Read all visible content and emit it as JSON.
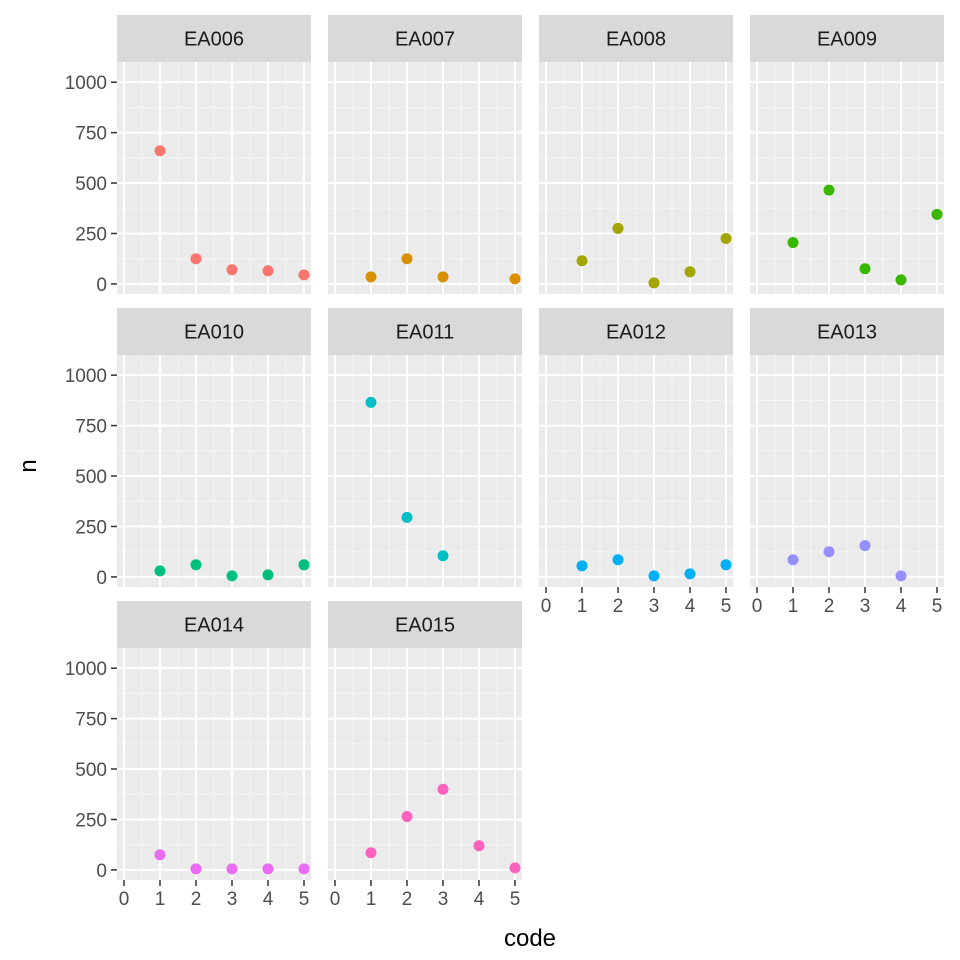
{
  "chart_data": {
    "type": "scatter",
    "xlabel": "code",
    "ylabel": "n",
    "xlim": [
      0,
      5
    ],
    "ylim": [
      0,
      1000
    ],
    "x_ticks": [
      "0",
      "1",
      "2",
      "3",
      "4",
      "5"
    ],
    "y_ticks": [
      "0",
      "250",
      "500",
      "750",
      "1000"
    ],
    "grid": true,
    "legend": "none",
    "facets": [
      {
        "name": "EA006",
        "color": "#F8766D",
        "points": [
          {
            "x": 1,
            "y": 660
          },
          {
            "x": 2,
            "y": 125
          },
          {
            "x": 3,
            "y": 70
          },
          {
            "x": 4,
            "y": 65
          },
          {
            "x": 5,
            "y": 45
          }
        ]
      },
      {
        "name": "EA007",
        "color": "#D89000",
        "points": [
          {
            "x": 1,
            "y": 35
          },
          {
            "x": 2,
            "y": 125
          },
          {
            "x": 3,
            "y": 35
          },
          {
            "x": 5,
            "y": 25
          }
        ]
      },
      {
        "name": "EA008",
        "color": "#A3A500",
        "points": [
          {
            "x": 1,
            "y": 115
          },
          {
            "x": 2,
            "y": 275
          },
          {
            "x": 3,
            "y": 5
          },
          {
            "x": 4,
            "y": 60
          },
          {
            "x": 5,
            "y": 225
          }
        ]
      },
      {
        "name": "EA009",
        "color": "#39B600",
        "points": [
          {
            "x": 1,
            "y": 205
          },
          {
            "x": 2,
            "y": 465
          },
          {
            "x": 3,
            "y": 75
          },
          {
            "x": 4,
            "y": 20
          },
          {
            "x": 5,
            "y": 345
          }
        ]
      },
      {
        "name": "EA010",
        "color": "#00BF7D",
        "points": [
          {
            "x": 1,
            "y": 30
          },
          {
            "x": 2,
            "y": 60
          },
          {
            "x": 3,
            "y": 5
          },
          {
            "x": 4,
            "y": 10
          },
          {
            "x": 5,
            "y": 60
          }
        ]
      },
      {
        "name": "EA011",
        "color": "#00BFC4",
        "points": [
          {
            "x": 1,
            "y": 865
          },
          {
            "x": 2,
            "y": 295
          },
          {
            "x": 3,
            "y": 105
          }
        ]
      },
      {
        "name": "EA012",
        "color": "#00B0F6",
        "points": [
          {
            "x": 1,
            "y": 55
          },
          {
            "x": 2,
            "y": 85
          },
          {
            "x": 3,
            "y": 5
          },
          {
            "x": 4,
            "y": 15
          },
          {
            "x": 5,
            "y": 60
          }
        ]
      },
      {
        "name": "EA013",
        "color": "#9590FF",
        "points": [
          {
            "x": 1,
            "y": 85
          },
          {
            "x": 2,
            "y": 125
          },
          {
            "x": 3,
            "y": 155
          },
          {
            "x": 4,
            "y": 5
          }
        ]
      },
      {
        "name": "EA014",
        "color": "#E76BF3",
        "points": [
          {
            "x": 1,
            "y": 75
          },
          {
            "x": 2,
            "y": 5
          },
          {
            "x": 3,
            "y": 5
          },
          {
            "x": 4,
            "y": 5
          },
          {
            "x": 5,
            "y": 5
          }
        ]
      },
      {
        "name": "EA015",
        "color": "#FF62BC",
        "points": [
          {
            "x": 1,
            "y": 85
          },
          {
            "x": 2,
            "y": 265
          },
          {
            "x": 3,
            "y": 400
          },
          {
            "x": 4,
            "y": 120
          },
          {
            "x": 5,
            "y": 10
          }
        ]
      }
    ]
  }
}
